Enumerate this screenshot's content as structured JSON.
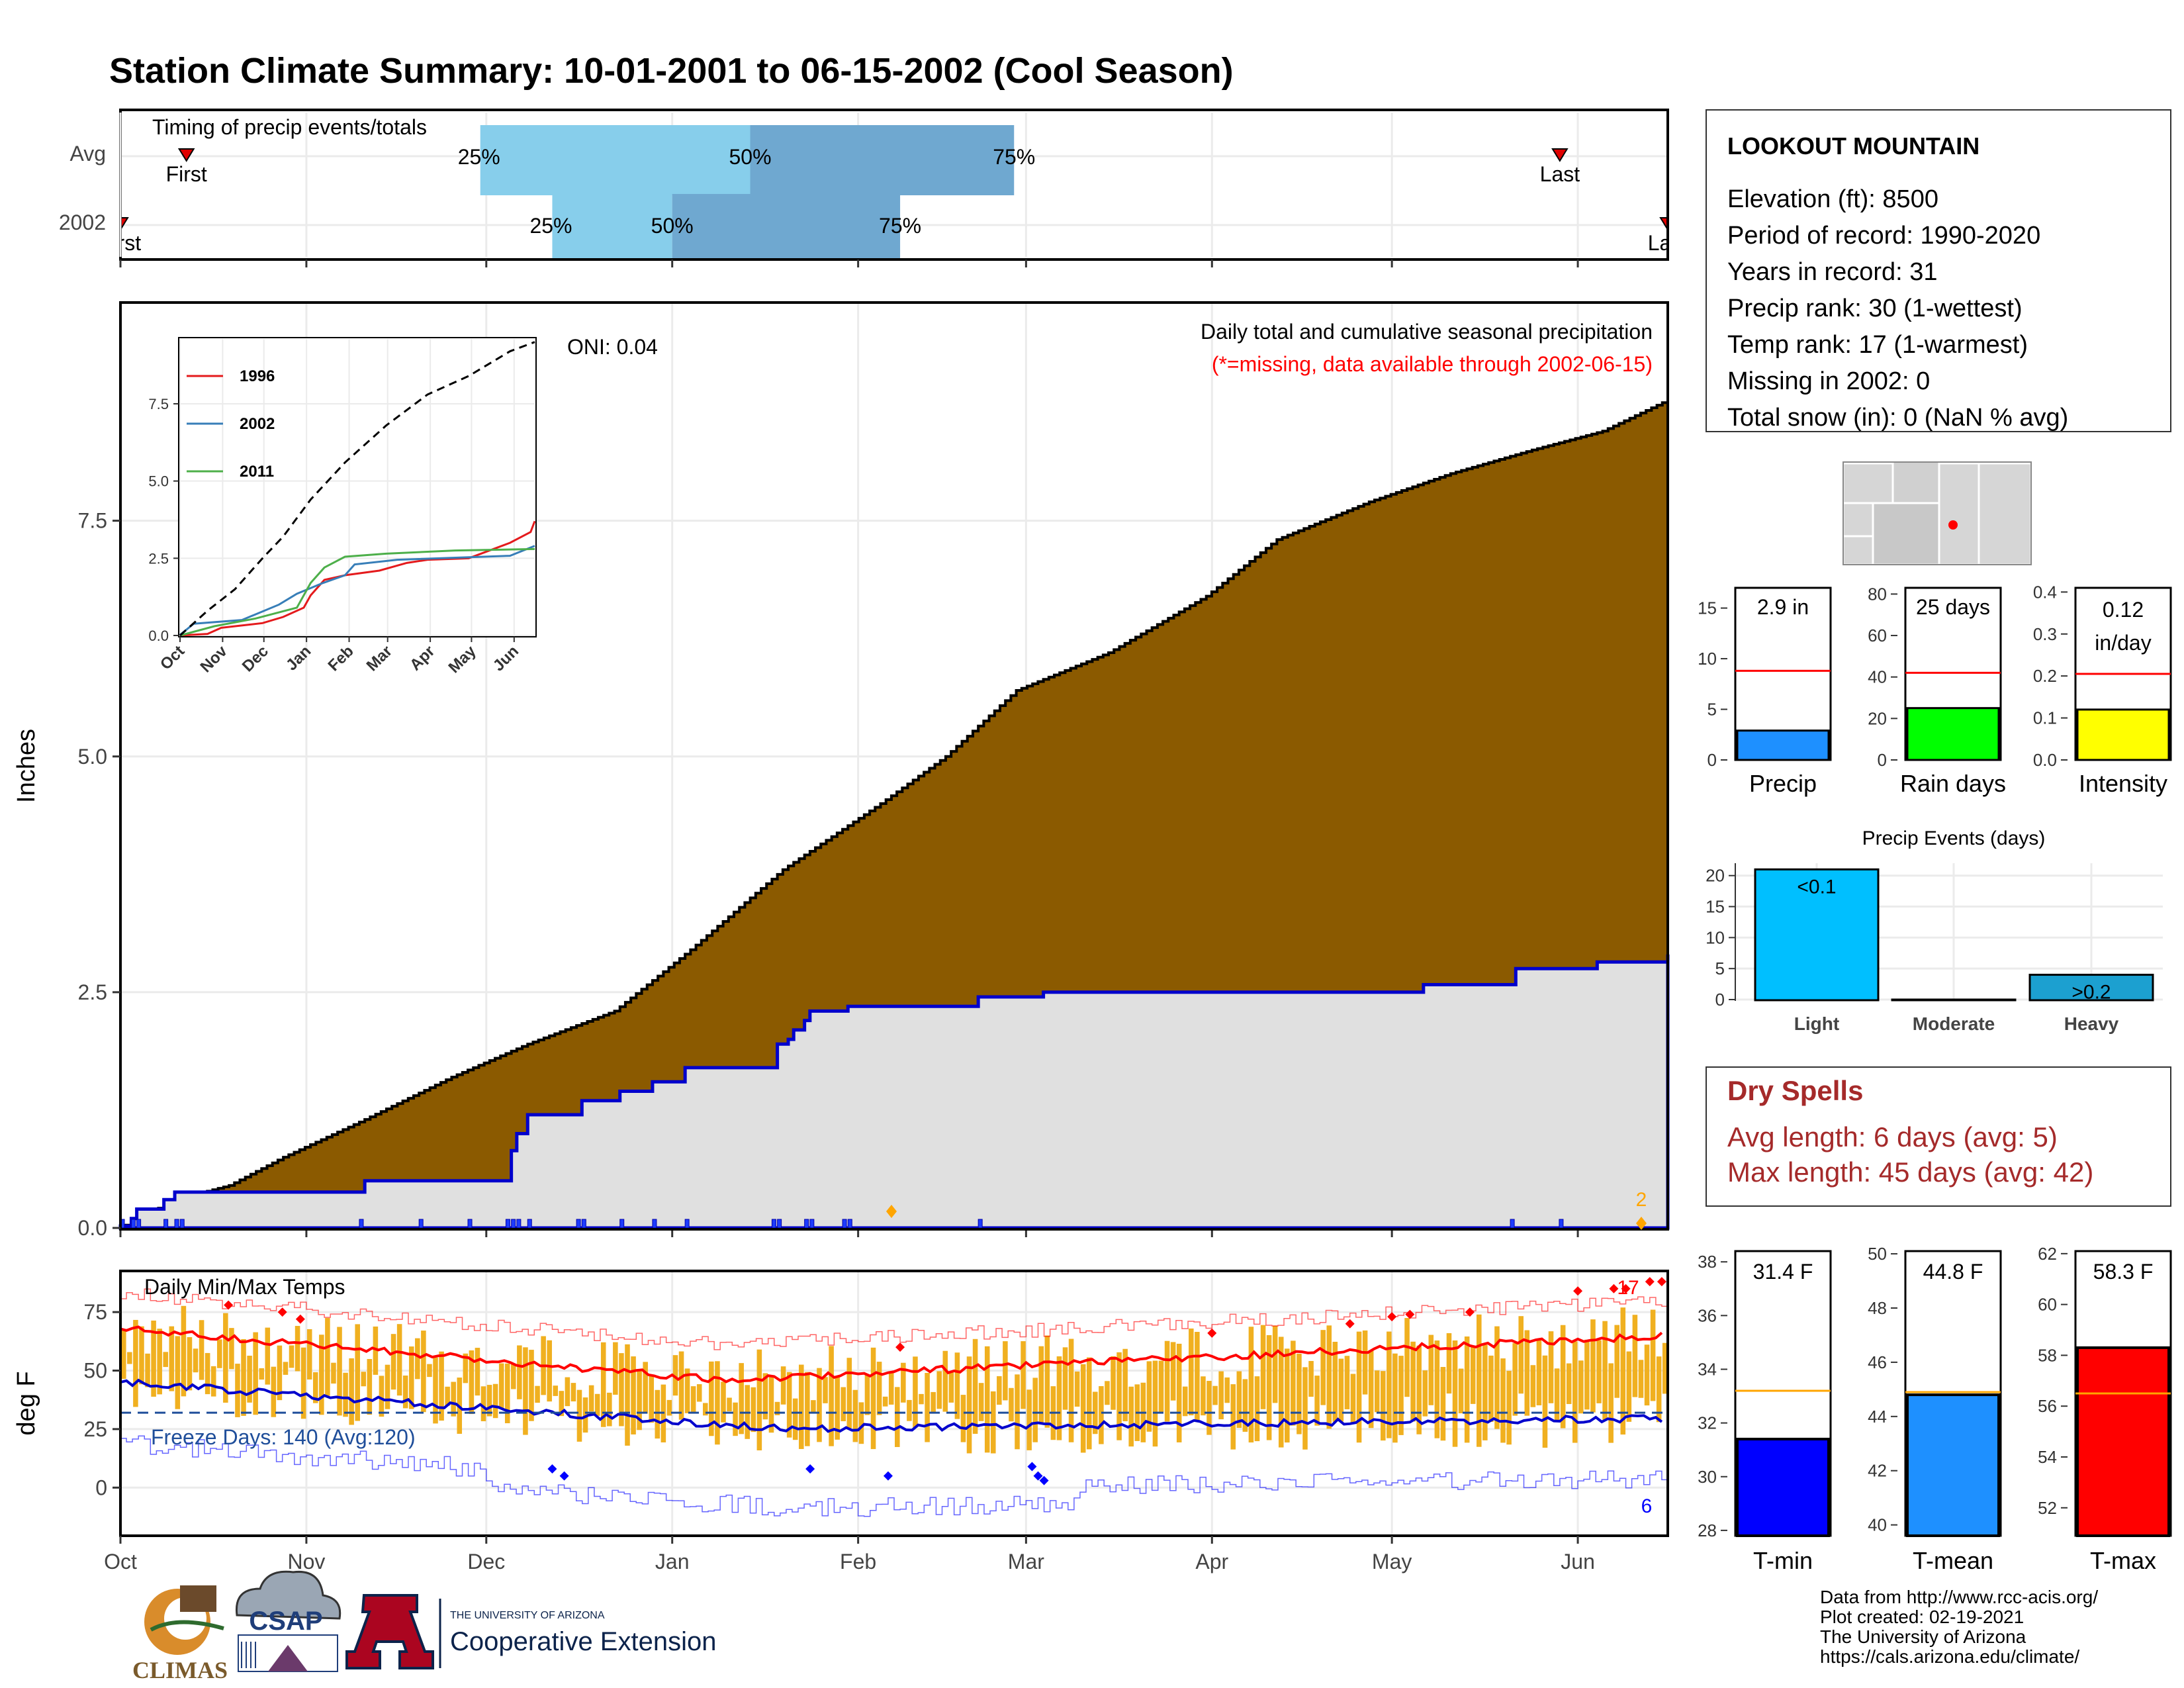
{
  "page": {
    "title": "Station Climate Summary: 10-01-2001 to 06-15-2002 (Cool Season)",
    "title_color": "#2B3F8A"
  },
  "months": [
    "Oct",
    "Nov",
    "Dec",
    "Jan",
    "Feb",
    "Mar",
    "Apr",
    "May",
    "Jun"
  ],
  "timing": {
    "title": "Timing of precip events/totals",
    "rows": [
      {
        "label": "Avg",
        "p25": "25%",
        "p50": "50%",
        "p75": "75%",
        "first": "First",
        "last": "Last",
        "first_day": 11,
        "p25_day": 60,
        "p50_day": 105,
        "p75_day": 149,
        "last_day": 240
      },
      {
        "label": "2002",
        "p25": "25%",
        "p50": "50%",
        "p75": "75%",
        "first": "First",
        "last": "Last",
        "first_day": 0,
        "p25_day": 72,
        "p50_day": 92,
        "p75_day": 130,
        "last_day": 258
      }
    ]
  },
  "precip": {
    "ylabel": "Inches",
    "yticks": [
      "0.0",
      "2.5",
      "5.0",
      "7.5"
    ],
    "ymax": 9.8,
    "annot_title": "Daily total and cumulative seasonal precipitation",
    "annot_missing": "(*=missing, data available through 2002-06-15)",
    "oni": "ONI: 0.04",
    "end_count": "2",
    "avg_cum": [
      [
        0,
        0.0
      ],
      [
        10,
        0.3
      ],
      [
        20,
        0.45
      ],
      [
        30,
        0.75
      ],
      [
        45,
        1.15
      ],
      [
        61,
        1.6
      ],
      [
        75,
        1.95
      ],
      [
        91,
        2.3
      ],
      [
        105,
        2.95
      ],
      [
        122,
        3.8
      ],
      [
        140,
        4.5
      ],
      [
        152,
        5.0
      ],
      [
        165,
        5.7
      ],
      [
        182,
        6.1
      ],
      [
        200,
        6.7
      ],
      [
        213,
        7.3
      ],
      [
        230,
        7.7
      ],
      [
        245,
        8.0
      ],
      [
        260,
        8.25
      ],
      [
        273,
        8.45
      ],
      [
        285,
        8.78
      ]
    ],
    "obs_cum": [
      [
        0,
        0.02
      ],
      [
        2,
        0.1
      ],
      [
        3,
        0.2
      ],
      [
        8,
        0.3
      ],
      [
        10,
        0.38
      ],
      [
        44,
        0.38
      ],
      [
        45,
        0.5
      ],
      [
        71,
        0.5
      ],
      [
        72,
        0.82
      ],
      [
        73,
        1.0
      ],
      [
        75,
        1.2
      ],
      [
        84,
        1.2
      ],
      [
        85,
        1.35
      ],
      [
        92,
        1.45
      ],
      [
        98,
        1.55
      ],
      [
        104,
        1.7
      ],
      [
        120,
        1.7
      ],
      [
        121,
        1.95
      ],
      [
        123,
        2.0
      ],
      [
        124,
        2.1
      ],
      [
        126,
        2.2
      ],
      [
        127,
        2.3
      ],
      [
        133,
        2.3
      ],
      [
        134,
        2.35
      ],
      [
        158,
        2.45
      ],
      [
        170,
        2.5
      ],
      [
        240,
        2.58
      ],
      [
        257,
        2.75
      ],
      [
        272,
        2.82
      ],
      [
        285,
        2.9
      ]
    ],
    "daily_days": [
      0,
      2,
      3,
      8,
      10,
      11,
      44,
      55,
      64,
      71,
      72,
      73,
      75,
      84,
      85,
      92,
      98,
      104,
      120,
      121,
      126,
      127,
      133,
      134,
      158,
      256,
      265
    ],
    "inset": {
      "yticks": [
        "0.0",
        "2.5",
        "5.0",
        "7.5"
      ],
      "xticks": [
        "Oct",
        "Nov",
        "Dec",
        "Jan",
        "Feb",
        "Mar",
        "Apr",
        "May",
        "Jun"
      ],
      "series": [
        {
          "name": "1996",
          "color": "#E41A1C",
          "points": [
            [
              0,
              0
            ],
            [
              20,
              0.05
            ],
            [
              30,
              0.25
            ],
            [
              60,
              0.4
            ],
            [
              75,
              0.6
            ],
            [
              90,
              0.9
            ],
            [
              95,
              1.3
            ],
            [
              105,
              1.8
            ],
            [
              120,
              1.95
            ],
            [
              145,
              2.1
            ],
            [
              165,
              2.35
            ],
            [
              180,
              2.45
            ],
            [
              210,
              2.5
            ],
            [
              240,
              3.0
            ],
            [
              255,
              3.35
            ],
            [
              258,
              3.7
            ]
          ]
        },
        {
          "name": "2002",
          "color": "#377EB8",
          "points": [
            [
              0,
              0.02
            ],
            [
              10,
              0.38
            ],
            [
              45,
              0.5
            ],
            [
              72,
              1.0
            ],
            [
              85,
              1.35
            ],
            [
              104,
              1.7
            ],
            [
              120,
              1.95
            ],
            [
              127,
              2.3
            ],
            [
              158,
              2.45
            ],
            [
              240,
              2.58
            ],
            [
              258,
              2.9
            ]
          ]
        },
        {
          "name": "2011",
          "color": "#4DAF4A",
          "points": [
            [
              0,
              0.0
            ],
            [
              25,
              0.3
            ],
            [
              55,
              0.55
            ],
            [
              85,
              0.9
            ],
            [
              95,
              1.7
            ],
            [
              105,
              2.2
            ],
            [
              120,
              2.55
            ],
            [
              150,
              2.65
            ],
            [
              200,
              2.75
            ],
            [
              258,
              2.8
            ]
          ]
        }
      ],
      "avg_points": [
        [
          0,
          0
        ],
        [
          20,
          0.8
        ],
        [
          40,
          1.5
        ],
        [
          60,
          2.5
        ],
        [
          75,
          3.2
        ],
        [
          95,
          4.4
        ],
        [
          120,
          5.6
        ],
        [
          150,
          6.8
        ],
        [
          180,
          7.8
        ],
        [
          210,
          8.4
        ],
        [
          240,
          9.2
        ],
        [
          258,
          9.5
        ]
      ]
    }
  },
  "temps": {
    "ylabel": "deg F",
    "title": "Daily Min/Max Temps",
    "yticks": [
      "0",
      "25",
      "50",
      "75"
    ],
    "freeze": "Freeze Days: 140 (Avg:120)",
    "freeze_value": 32,
    "record_high_count": "17",
    "record_low_count": "6"
  },
  "station": {
    "name": "LOOKOUT MOUNTAIN",
    "lines": [
      "Elevation (ft): 8500",
      "Period of record: 1990-2020",
      "Years in record: 31",
      "Precip rank: 30 (1-wettest)",
      "Temp rank: 17 (1-warmest)",
      "Missing in 2002: 0",
      "Total snow (in): 0 (NaN % avg)"
    ]
  },
  "mini_bars": [
    {
      "label": "Precip",
      "value_label": "2.9 in",
      "value": 2.9,
      "avg": 8.8,
      "ymax": 17,
      "yticks": [
        0,
        5,
        10,
        15
      ],
      "color": "#1E90FF"
    },
    {
      "label": "Rain days",
      "value_label": "25 days",
      "value": 25,
      "avg": 42,
      "ymax": 83,
      "yticks": [
        0,
        20,
        40,
        60,
        80
      ],
      "color": "#00FF00"
    },
    {
      "label": "Intensity",
      "value_label": "0.12",
      "value_label2": "in/day",
      "value": 0.12,
      "avg": 0.205,
      "ymax": 0.41,
      "yticks": [
        "0.0",
        "0.1",
        "0.2",
        "0.3",
        "0.4"
      ],
      "color": "#FFFF00"
    }
  ],
  "events": {
    "title": "Precip Events (days)",
    "categories": [
      "Light",
      "Moderate",
      "Heavy"
    ],
    "bar_labels": [
      "<0.1",
      "",
      ">0.2"
    ],
    "values": [
      21,
      0,
      4
    ],
    "colors": [
      "#00BFFF",
      "#00BFFF",
      "#1CA0D0"
    ],
    "yticks": [
      "0",
      "5",
      "10",
      "15",
      "20"
    ],
    "ymax": 22
  },
  "dry": {
    "title": "Dry Spells",
    "avg": "Avg length: 6 days (avg: 5)",
    "max": "Max length: 45 days (avg: 42)",
    "color": "#A52A2A"
  },
  "temp_bars": [
    {
      "label": "T-min",
      "value_label": "31.4 F",
      "value": 31.4,
      "avg": 33.2,
      "ymin": 27.8,
      "ymax": 38.4,
      "yticks": [
        "28",
        "30",
        "32",
        "34",
        "36",
        "38"
      ],
      "color": "#0000FF"
    },
    {
      "label": "T-mean",
      "value_label": "44.8 F",
      "value": 44.8,
      "avg": 44.9,
      "ymin": 39.6,
      "ymax": 50.1,
      "yticks": [
        "40",
        "42",
        "44",
        "46",
        "48",
        "50"
      ],
      "color": "#1E90FF"
    },
    {
      "label": "T-max",
      "value_label": "58.3 F",
      "value": 58.3,
      "avg": 56.5,
      "ymin": 50.9,
      "ymax": 62.1,
      "yticks": [
        "52",
        "54",
        "56",
        "58",
        "60",
        "62"
      ],
      "color": "#FF0000"
    }
  ],
  "footer": {
    "lines": [
      "Data from http://www.rcc-acis.org/",
      "Plot created: 02-19-2021",
      "The University of Arizona",
      "https://cals.arizona.edu/climate/"
    ],
    "logo_climas": "CLIMAS",
    "logo_csap": "CSAP",
    "logo_ua_small": "THE UNIVERSITY OF ARIZONA",
    "logo_ua_big": "Cooperative Extension"
  }
}
